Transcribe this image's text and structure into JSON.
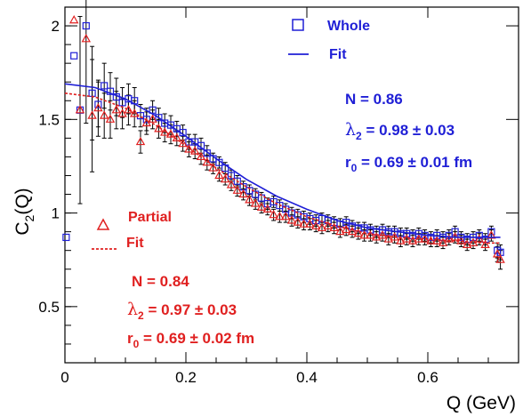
{
  "chart_data": {
    "type": "scatter",
    "xlabel": "Q (GeV)",
    "ylabel_main": "C",
    "ylabel_sub": "2",
    "ylabel_tail": "(Q)",
    "xlim": [
      0,
      0.75
    ],
    "ylim": [
      0.2,
      2.1
    ],
    "x_ticks": [
      0,
      0.2,
      0.4,
      0.6
    ],
    "x_tick_labels": [
      "0",
      "0.2",
      "0.4",
      "0.6"
    ],
    "y_ticks": [
      0.5,
      1,
      1.5,
      2
    ],
    "y_tick_labels": [
      "0.5",
      "1",
      "1.5",
      "2"
    ],
    "colors": {
      "whole": "#1f1fd6",
      "partial": "#e02020",
      "errbar": "#000000"
    },
    "series": [
      {
        "name": "Whole",
        "marker": "open-square",
        "points": [
          [
            0.002,
            0.87,
            0.0
          ],
          [
            0.015,
            1.84,
            0.0
          ],
          [
            0.025,
            1.55,
            0.0
          ],
          [
            0.035,
            2.0,
            0.0
          ],
          [
            0.045,
            1.64,
            0.25
          ],
          [
            0.055,
            1.58,
            0.12
          ],
          [
            0.065,
            1.68,
            0.12
          ],
          [
            0.075,
            1.65,
            0.1
          ],
          [
            0.085,
            1.62,
            0.1
          ],
          [
            0.095,
            1.59,
            0.08
          ],
          [
            0.105,
            1.61,
            0.08
          ],
          [
            0.115,
            1.6,
            0.07
          ],
          [
            0.125,
            1.52,
            0.06
          ],
          [
            0.135,
            1.5,
            0.06
          ],
          [
            0.145,
            1.55,
            0.05
          ],
          [
            0.155,
            1.51,
            0.05
          ],
          [
            0.165,
            1.48,
            0.05
          ],
          [
            0.175,
            1.47,
            0.05
          ],
          [
            0.185,
            1.45,
            0.04
          ],
          [
            0.195,
            1.43,
            0.04
          ],
          [
            0.205,
            1.38,
            0.04
          ],
          [
            0.215,
            1.38,
            0.04
          ],
          [
            0.225,
            1.36,
            0.04
          ],
          [
            0.235,
            1.32,
            0.04
          ],
          [
            0.245,
            1.29,
            0.03
          ],
          [
            0.255,
            1.27,
            0.03
          ],
          [
            0.265,
            1.24,
            0.03
          ],
          [
            0.275,
            1.2,
            0.03
          ],
          [
            0.285,
            1.17,
            0.03
          ],
          [
            0.295,
            1.14,
            0.03
          ],
          [
            0.305,
            1.12,
            0.03
          ],
          [
            0.315,
            1.1,
            0.03
          ],
          [
            0.325,
            1.08,
            0.03
          ],
          [
            0.335,
            1.05,
            0.03
          ],
          [
            0.345,
            1.06,
            0.03
          ],
          [
            0.355,
            1.04,
            0.03
          ],
          [
            0.365,
            1.02,
            0.03
          ],
          [
            0.375,
            1.0,
            0.03
          ],
          [
            0.385,
            0.99,
            0.03
          ],
          [
            0.395,
            0.98,
            0.03
          ],
          [
            0.405,
            0.97,
            0.03
          ],
          [
            0.415,
            0.96,
            0.03
          ],
          [
            0.425,
            0.97,
            0.03
          ],
          [
            0.435,
            0.96,
            0.03
          ],
          [
            0.445,
            0.95,
            0.03
          ],
          [
            0.455,
            0.94,
            0.03
          ],
          [
            0.465,
            0.95,
            0.03
          ],
          [
            0.475,
            0.93,
            0.03
          ],
          [
            0.485,
            0.92,
            0.03
          ],
          [
            0.495,
            0.92,
            0.03
          ],
          [
            0.505,
            0.91,
            0.03
          ],
          [
            0.515,
            0.9,
            0.03
          ],
          [
            0.525,
            0.91,
            0.03
          ],
          [
            0.535,
            0.9,
            0.03
          ],
          [
            0.545,
            0.9,
            0.03
          ],
          [
            0.555,
            0.89,
            0.03
          ],
          [
            0.565,
            0.89,
            0.03
          ],
          [
            0.575,
            0.88,
            0.03
          ],
          [
            0.585,
            0.89,
            0.03
          ],
          [
            0.595,
            0.88,
            0.03
          ],
          [
            0.605,
            0.87,
            0.03
          ],
          [
            0.615,
            0.88,
            0.03
          ],
          [
            0.625,
            0.87,
            0.03
          ],
          [
            0.635,
            0.88,
            0.03
          ],
          [
            0.645,
            0.9,
            0.03
          ],
          [
            0.655,
            0.87,
            0.03
          ],
          [
            0.665,
            0.86,
            0.03
          ],
          [
            0.675,
            0.87,
            0.03
          ],
          [
            0.685,
            0.88,
            0.03
          ],
          [
            0.695,
            0.86,
            0.03
          ],
          [
            0.705,
            0.9,
            0.03
          ],
          [
            0.715,
            0.8,
            0.04
          ],
          [
            0.72,
            0.79,
            0.04
          ]
        ],
        "fit": {
          "name": "Fit",
          "N": 0.86,
          "lambda": 0.98,
          "r0_fm": 0.69
        }
      },
      {
        "name": "Partial",
        "marker": "open-triangle",
        "points": [
          [
            0.015,
            2.03,
            0.0
          ],
          [
            0.025,
            1.55,
            0.5
          ],
          [
            0.035,
            1.93,
            0.45
          ],
          [
            0.045,
            1.52,
            0.3
          ],
          [
            0.055,
            1.56,
            0.15
          ],
          [
            0.065,
            1.52,
            0.12
          ],
          [
            0.075,
            1.5,
            0.1
          ],
          [
            0.085,
            1.55,
            0.1
          ],
          [
            0.095,
            1.53,
            0.08
          ],
          [
            0.105,
            1.55,
            0.08
          ],
          [
            0.115,
            1.53,
            0.07
          ],
          [
            0.125,
            1.38,
            0.06
          ],
          [
            0.135,
            1.48,
            0.06
          ],
          [
            0.145,
            1.5,
            0.05
          ],
          [
            0.155,
            1.45,
            0.05
          ],
          [
            0.165,
            1.43,
            0.05
          ],
          [
            0.175,
            1.42,
            0.05
          ],
          [
            0.185,
            1.4,
            0.04
          ],
          [
            0.195,
            1.37,
            0.04
          ],
          [
            0.205,
            1.34,
            0.04
          ],
          [
            0.215,
            1.33,
            0.04
          ],
          [
            0.225,
            1.3,
            0.04
          ],
          [
            0.235,
            1.27,
            0.04
          ],
          [
            0.245,
            1.24,
            0.03
          ],
          [
            0.255,
            1.2,
            0.03
          ],
          [
            0.265,
            1.18,
            0.03
          ],
          [
            0.275,
            1.15,
            0.03
          ],
          [
            0.285,
            1.12,
            0.03
          ],
          [
            0.295,
            1.1,
            0.03
          ],
          [
            0.305,
            1.07,
            0.03
          ],
          [
            0.315,
            1.05,
            0.03
          ],
          [
            0.325,
            1.03,
            0.03
          ],
          [
            0.335,
            1.02,
            0.03
          ],
          [
            0.345,
            0.99,
            0.03
          ],
          [
            0.355,
            0.98,
            0.03
          ],
          [
            0.365,
            0.98,
            0.03
          ],
          [
            0.375,
            0.96,
            0.03
          ],
          [
            0.385,
            0.95,
            0.03
          ],
          [
            0.395,
            0.94,
            0.03
          ],
          [
            0.405,
            0.94,
            0.03
          ],
          [
            0.415,
            0.93,
            0.03
          ],
          [
            0.425,
            0.92,
            0.03
          ],
          [
            0.435,
            0.93,
            0.03
          ],
          [
            0.445,
            0.92,
            0.03
          ],
          [
            0.455,
            0.9,
            0.03
          ],
          [
            0.465,
            0.91,
            0.03
          ],
          [
            0.475,
            0.9,
            0.03
          ],
          [
            0.485,
            0.89,
            0.03
          ],
          [
            0.495,
            0.88,
            0.03
          ],
          [
            0.505,
            0.88,
            0.03
          ],
          [
            0.515,
            0.87,
            0.03
          ],
          [
            0.525,
            0.88,
            0.03
          ],
          [
            0.535,
            0.86,
            0.03
          ],
          [
            0.545,
            0.87,
            0.03
          ],
          [
            0.555,
            0.85,
            0.03
          ],
          [
            0.565,
            0.86,
            0.03
          ],
          [
            0.575,
            0.85,
            0.03
          ],
          [
            0.585,
            0.86,
            0.03
          ],
          [
            0.595,
            0.86,
            0.03
          ],
          [
            0.605,
            0.85,
            0.03
          ],
          [
            0.615,
            0.85,
            0.03
          ],
          [
            0.625,
            0.84,
            0.03
          ],
          [
            0.635,
            0.86,
            0.03
          ],
          [
            0.645,
            0.87,
            0.03
          ],
          [
            0.655,
            0.85,
            0.03
          ],
          [
            0.665,
            0.83,
            0.03
          ],
          [
            0.675,
            0.84,
            0.03
          ],
          [
            0.685,
            0.86,
            0.03
          ],
          [
            0.695,
            0.83,
            0.03
          ],
          [
            0.705,
            0.88,
            0.03
          ],
          [
            0.715,
            0.78,
            0.04
          ],
          [
            0.72,
            0.75,
            0.05
          ]
        ],
        "fit": {
          "name": "Fit",
          "N": 0.84,
          "lambda": 0.97,
          "r0_fm": 0.69
        }
      }
    ],
    "fit_curves": [
      {
        "series": "Whole",
        "style": "solid",
        "x": [
          0.0,
          0.05,
          0.1,
          0.15,
          0.2,
          0.25,
          0.3,
          0.35,
          0.4,
          0.45,
          0.5,
          0.55,
          0.6,
          0.65,
          0.7,
          0.72
        ],
        "y": [
          1.69,
          1.67,
          1.61,
          1.52,
          1.41,
          1.29,
          1.18,
          1.09,
          1.02,
          0.96,
          0.92,
          0.9,
          0.88,
          0.87,
          0.87,
          0.87
        ]
      },
      {
        "series": "Partial",
        "style": "dashed",
        "x": [
          0.0,
          0.05,
          0.1,
          0.15,
          0.2,
          0.25,
          0.3,
          0.35,
          0.4,
          0.45,
          0.5,
          0.55,
          0.6,
          0.65,
          0.7,
          0.72
        ],
        "y": [
          1.64,
          1.62,
          1.56,
          1.47,
          1.36,
          1.24,
          1.14,
          1.05,
          0.98,
          0.93,
          0.89,
          0.87,
          0.86,
          0.85,
          0.84,
          0.84
        ]
      }
    ],
    "legend_whole": {
      "label": "Whole",
      "fit_label": "Fit",
      "n_line": "N = 0.86",
      "lambda_sym": "λ",
      "lambda_sub": "2",
      "lambda_val": " = 0.98 ± 0.03",
      "r_sym": "r",
      "r_sub": "0",
      "r_val": " = 0.69 ± 0.01 fm"
    },
    "legend_partial": {
      "label": "Partial",
      "fit_label": "Fit",
      "n_line": "N = 0.84",
      "lambda_sym": "λ",
      "lambda_sub": "2",
      "lambda_val": " = 0.97 ± 0.03",
      "r_sym": "r",
      "r_sub": "0",
      "r_val": " = 0.69 ± 0.02 fm"
    }
  }
}
